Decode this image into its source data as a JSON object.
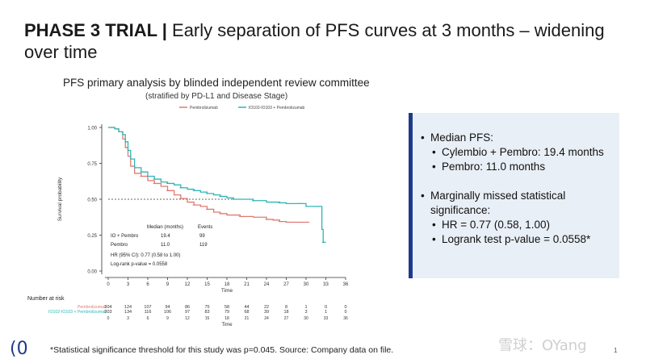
{
  "slide": {
    "title_bold": "PHASE 3 TRIAL |",
    "title_rest": " Early separation of PFS curves at 3 months – widening over time",
    "footnote": "*Statistical significance threshold for this study was p=0.045. Source: Company data on file.",
    "logo": "(0",
    "watermark": "雪球：OYang",
    "page_number": "1"
  },
  "summary_panel": {
    "items": [
      {
        "level": 1,
        "text": "Median PFS:"
      },
      {
        "level": 2,
        "text": "Cylembio + Pembro: 19.4 months"
      },
      {
        "level": 2,
        "text": "Pembro: 11.0 months"
      },
      {
        "level": 1,
        "text": "Marginally missed statistical significance:"
      },
      {
        "level": 2,
        "text": "HR = 0.77 (0.58, 1.00)"
      },
      {
        "level": 2,
        "text": "Logrank test p-value = 0.0558*"
      }
    ]
  },
  "chart_data": {
    "type": "line",
    "title": "PFS primary analysis by blinded independent review committee",
    "subtitle": "(stratified by PD-L1 and Disease Stage)",
    "xlabel": "Time",
    "ylabel": "Survival probability",
    "xlim": [
      0,
      36
    ],
    "ylim": [
      0,
      1
    ],
    "x_ticks": [
      0,
      3,
      6,
      9,
      12,
      15,
      18,
      21,
      24,
      27,
      30,
      33,
      36
    ],
    "y_ticks": [
      "0.00",
      "0.25",
      "0.50",
      "0.75",
      "1.00"
    ],
    "median_line": 0.5,
    "legend": {
      "placement": "top",
      "entries": [
        "Pembrolizumab",
        "IO102-IO103 + Pembrolizumab"
      ]
    },
    "colors": {
      "pembro": "#e07a72",
      "combo": "#2fb5b5",
      "panel_bar": "#1f3a8a",
      "panel_bg": "#e9eff6"
    },
    "series": [
      {
        "name": "Pembrolizumab",
        "color": "#e07a72",
        "points": [
          [
            0,
            1.0
          ],
          [
            1,
            0.99
          ],
          [
            1.6,
            0.97
          ],
          [
            2.2,
            0.92
          ],
          [
            2.6,
            0.86
          ],
          [
            3,
            0.8
          ],
          [
            3.4,
            0.73
          ],
          [
            4,
            0.68
          ],
          [
            5,
            0.66
          ],
          [
            6,
            0.63
          ],
          [
            7,
            0.61
          ],
          [
            8,
            0.59
          ],
          [
            9,
            0.56
          ],
          [
            10,
            0.53
          ],
          [
            11,
            0.505
          ],
          [
            12,
            0.48
          ],
          [
            13,
            0.46
          ],
          [
            14,
            0.45
          ],
          [
            15,
            0.43
          ],
          [
            16,
            0.41
          ],
          [
            17,
            0.4
          ],
          [
            18,
            0.39
          ],
          [
            20,
            0.38
          ],
          [
            22,
            0.375
          ],
          [
            24,
            0.36
          ],
          [
            25,
            0.355
          ],
          [
            26,
            0.345
          ],
          [
            27,
            0.34
          ],
          [
            28,
            0.34
          ],
          [
            30.5,
            0.34
          ]
        ]
      },
      {
        "name": "IO102-IO103 + Pembrolizumab",
        "color": "#2fb5b5",
        "points": [
          [
            0,
            1.0
          ],
          [
            1,
            0.99
          ],
          [
            1.6,
            0.97
          ],
          [
            2.2,
            0.95
          ],
          [
            2.6,
            0.9
          ],
          [
            3,
            0.84
          ],
          [
            3.4,
            0.78
          ],
          [
            4,
            0.72
          ],
          [
            5,
            0.69
          ],
          [
            6,
            0.66
          ],
          [
            7,
            0.64
          ],
          [
            8,
            0.62
          ],
          [
            9,
            0.61
          ],
          [
            10,
            0.6
          ],
          [
            11,
            0.58
          ],
          [
            12,
            0.57
          ],
          [
            13,
            0.56
          ],
          [
            14,
            0.55
          ],
          [
            15,
            0.54
          ],
          [
            16,
            0.53
          ],
          [
            17,
            0.52
          ],
          [
            18,
            0.51
          ],
          [
            19,
            0.5
          ],
          [
            20,
            0.5
          ],
          [
            22,
            0.49
          ],
          [
            24,
            0.48
          ],
          [
            26,
            0.475
          ],
          [
            27,
            0.47
          ],
          [
            29,
            0.47
          ],
          [
            30,
            0.45
          ],
          [
            32,
            0.45
          ],
          [
            32.4,
            0.29
          ],
          [
            32.6,
            0.2
          ],
          [
            33,
            0.2
          ]
        ]
      }
    ],
    "annotation_table": {
      "header": [
        "",
        "Median (months)",
        "Events"
      ],
      "rows": [
        [
          "IO + Pembro",
          "19.4",
          "99"
        ],
        [
          "Pembro",
          "11.0",
          "119"
        ]
      ],
      "hr_text": "HR (95% CI): 0.77 (0.58 to 1.00)",
      "p_text": "Log-rank p-value = 0.0558"
    },
    "risk_table": {
      "title": "Number at risk",
      "times": [
        0,
        3,
        6,
        9,
        12,
        15,
        18,
        21,
        24,
        27,
        30,
        33,
        36
      ],
      "rows": [
        {
          "label": "Pembrolizumab",
          "color": "#e07a72",
          "values": [
            "204",
            "124",
            "107",
            "94",
            "86",
            "75",
            "58",
            "44",
            "22",
            "8",
            "1",
            "0",
            "0"
          ]
        },
        {
          "label": "IO102-IO103 + Pembrolizumab",
          "color": "#2fb5b5",
          "values": [
            "203",
            "134",
            "116",
            "106",
            "97",
            "83",
            "79",
            "68",
            "39",
            "18",
            "3",
            "1",
            "0"
          ]
        }
      ],
      "xlabel": "Time"
    }
  }
}
